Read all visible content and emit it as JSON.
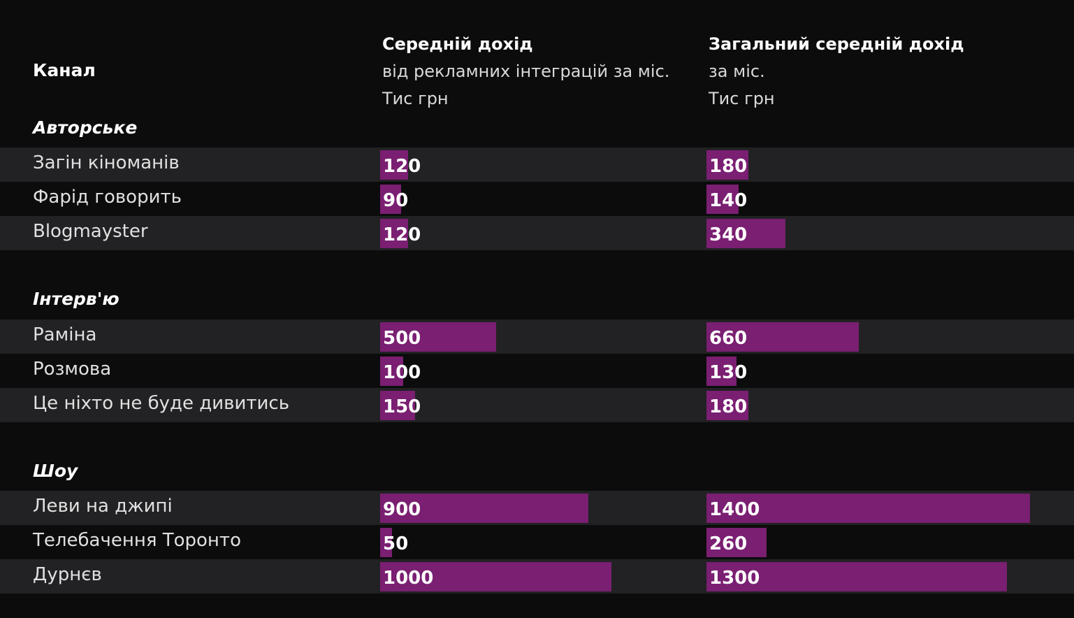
{
  "chart_data": {
    "type": "bar",
    "headers": {
      "channel": "Канал",
      "col1_bold": "Середній дохід",
      "col1_line2": "від рекламних інтеграцій за міс.",
      "col1_line3": "Тис грн",
      "col2_bold": "Загальний середній дохід",
      "col2_line2": "за міс.",
      "col2_line3": "Тис грн"
    },
    "groups": [
      {
        "title": "Авторське",
        "rows": [
          {
            "name": "Загін кіноманів",
            "ad": 120,
            "total": 180
          },
          {
            "name": "Фарід говорить",
            "ad": 90,
            "total": 140
          },
          {
            "name": "Blogmayster",
            "ad": 120,
            "total": 340
          }
        ]
      },
      {
        "title": "Інтерв'ю",
        "rows": [
          {
            "name": "Раміна",
            "ad": 500,
            "total": 660
          },
          {
            "name": "Розмова",
            "ad": 100,
            "total": 130
          },
          {
            "name": "Це ніхто не буде дивитись",
            "ad": 150,
            "total": 180
          }
        ]
      },
      {
        "title": "Шоу",
        "rows": [
          {
            "name": "Леви на джипі",
            "ad": 900,
            "total": 1400
          },
          {
            "name": "Телебачення Торонто",
            "ad": 50,
            "total": 260
          },
          {
            "name": "Дурнєв",
            "ad": 1000,
            "total": 1300
          }
        ]
      }
    ],
    "bar_color": "#7a1f72"
  }
}
